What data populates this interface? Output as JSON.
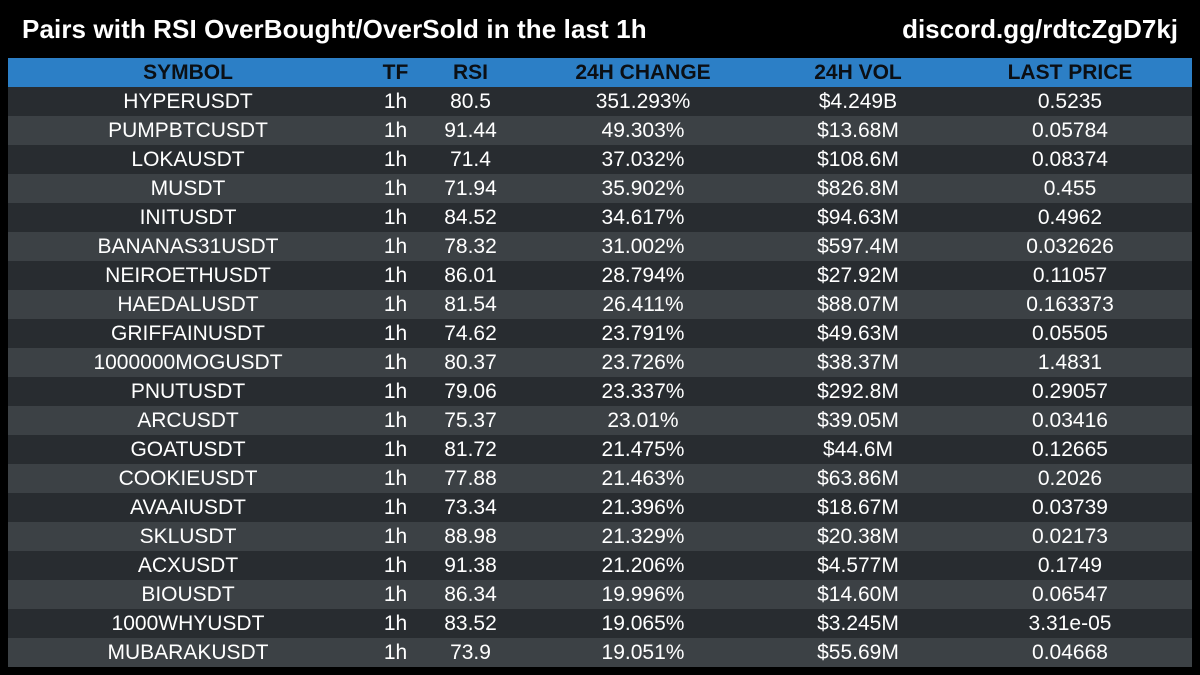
{
  "header": {
    "title": "Pairs with RSI OverBought/OverSold in the last 1h",
    "link": "discord.gg/rdtcZgD7kj"
  },
  "colors": {
    "background": "#000000",
    "header_row": "#2c7fc6",
    "row_dark": "#282c30",
    "row_light": "#3c4145",
    "text": "#ffffff"
  },
  "table": {
    "columns": [
      "SYMBOL",
      "TF",
      "RSI",
      "24H CHANGE",
      "24H VOL",
      "LAST PRICE"
    ],
    "rows": [
      {
        "symbol": "HYPERUSDT",
        "tf": "1h",
        "rsi": "80.5",
        "change": "351.293%",
        "vol": "$4.249B",
        "price": "0.5235"
      },
      {
        "symbol": "PUMPBTCUSDT",
        "tf": "1h",
        "rsi": "91.44",
        "change": "49.303%",
        "vol": "$13.68M",
        "price": "0.05784"
      },
      {
        "symbol": "LOKAUSDT",
        "tf": "1h",
        "rsi": "71.4",
        "change": "37.032%",
        "vol": "$108.6M",
        "price": "0.08374"
      },
      {
        "symbol": "MUSDT",
        "tf": "1h",
        "rsi": "71.94",
        "change": "35.902%",
        "vol": "$826.8M",
        "price": "0.455"
      },
      {
        "symbol": "INITUSDT",
        "tf": "1h",
        "rsi": "84.52",
        "change": "34.617%",
        "vol": "$94.63M",
        "price": "0.4962"
      },
      {
        "symbol": "BANANAS31USDT",
        "tf": "1h",
        "rsi": "78.32",
        "change": "31.002%",
        "vol": "$597.4M",
        "price": "0.032626"
      },
      {
        "symbol": "NEIROETHUSDT",
        "tf": "1h",
        "rsi": "86.01",
        "change": "28.794%",
        "vol": "$27.92M",
        "price": "0.11057"
      },
      {
        "symbol": "HAEDALUSDT",
        "tf": "1h",
        "rsi": "81.54",
        "change": "26.411%",
        "vol": "$88.07M",
        "price": "0.163373"
      },
      {
        "symbol": "GRIFFAINUSDT",
        "tf": "1h",
        "rsi": "74.62",
        "change": "23.791%",
        "vol": "$49.63M",
        "price": "0.05505"
      },
      {
        "symbol": "1000000MOGUSDT",
        "tf": "1h",
        "rsi": "80.37",
        "change": "23.726%",
        "vol": "$38.37M",
        "price": "1.4831"
      },
      {
        "symbol": "PNUTUSDT",
        "tf": "1h",
        "rsi": "79.06",
        "change": "23.337%",
        "vol": "$292.8M",
        "price": "0.29057"
      },
      {
        "symbol": "ARCUSDT",
        "tf": "1h",
        "rsi": "75.37",
        "change": "23.01%",
        "vol": "$39.05M",
        "price": "0.03416"
      },
      {
        "symbol": "GOATUSDT",
        "tf": "1h",
        "rsi": "81.72",
        "change": "21.475%",
        "vol": "$44.6M",
        "price": "0.12665"
      },
      {
        "symbol": "COOKIEUSDT",
        "tf": "1h",
        "rsi": "77.88",
        "change": "21.463%",
        "vol": "$63.86M",
        "price": "0.2026"
      },
      {
        "symbol": "AVAAIUSDT",
        "tf": "1h",
        "rsi": "73.34",
        "change": "21.396%",
        "vol": "$18.67M",
        "price": "0.03739"
      },
      {
        "symbol": "SKLUSDT",
        "tf": "1h",
        "rsi": "88.98",
        "change": "21.329%",
        "vol": "$20.38M",
        "price": "0.02173"
      },
      {
        "symbol": "ACXUSDT",
        "tf": "1h",
        "rsi": "91.38",
        "change": "21.206%",
        "vol": "$4.577M",
        "price": "0.1749"
      },
      {
        "symbol": "BIOUSDT",
        "tf": "1h",
        "rsi": "86.34",
        "change": "19.996%",
        "vol": "$14.60M",
        "price": "0.06547"
      },
      {
        "symbol": "1000WHYUSDT",
        "tf": "1h",
        "rsi": "83.52",
        "change": "19.065%",
        "vol": "$3.245M",
        "price": "3.31e-05"
      },
      {
        "symbol": "MUBARAKUSDT",
        "tf": "1h",
        "rsi": "73.9",
        "change": "19.051%",
        "vol": "$55.69M",
        "price": "0.04668"
      }
    ]
  }
}
